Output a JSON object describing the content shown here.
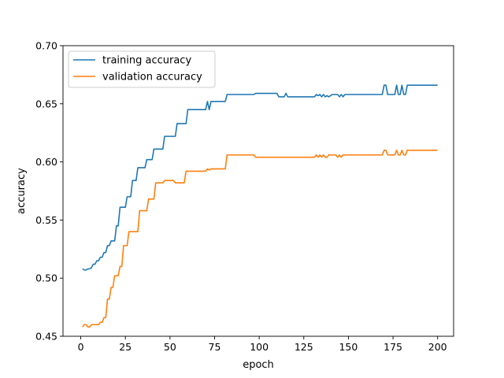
{
  "chart_data": {
    "type": "line",
    "xlabel": "epoch",
    "ylabel": "accuracy",
    "xlim": [
      -9.95,
      208.95
    ],
    "ylim": [
      0.45,
      0.7
    ],
    "xticks": [
      0,
      25,
      50,
      75,
      100,
      125,
      150,
      175,
      200
    ],
    "yticks": [
      0.45,
      0.5,
      0.55,
      0.6,
      0.65,
      0.7
    ],
    "xtick_labels": [
      "0",
      "25",
      "50",
      "75",
      "100",
      "125",
      "150",
      "175",
      "200"
    ],
    "ytick_labels": [
      "0.45",
      "0.50",
      "0.55",
      "0.60",
      "0.65",
      "0.70"
    ],
    "legend": {
      "placement": "upper-left"
    },
    "grid": false,
    "series": [
      {
        "name": "training accuracy",
        "color": "#1f77b4",
        "points": [
          [
            1,
            0.508
          ],
          [
            2,
            0.507
          ],
          [
            3,
            0.507
          ],
          [
            4,
            0.508
          ],
          [
            5,
            0.508
          ],
          [
            6,
            0.509
          ],
          [
            7,
            0.512
          ],
          [
            8,
            0.512
          ],
          [
            9,
            0.515
          ],
          [
            10,
            0.515
          ],
          [
            11,
            0.518
          ],
          [
            12,
            0.518
          ],
          [
            13,
            0.522
          ],
          [
            14,
            0.522
          ],
          [
            15,
            0.528
          ],
          [
            16,
            0.528
          ],
          [
            17,
            0.532
          ],
          [
            18,
            0.532
          ],
          [
            19,
            0.532
          ],
          [
            20,
            0.545
          ],
          [
            21,
            0.545
          ],
          [
            22,
            0.561
          ],
          [
            23,
            0.561
          ],
          [
            24,
            0.561
          ],
          [
            25,
            0.561
          ],
          [
            26,
            0.57
          ],
          [
            27,
            0.57
          ],
          [
            28,
            0.57
          ],
          [
            29,
            0.584
          ],
          [
            30,
            0.584
          ],
          [
            31,
            0.584
          ],
          [
            32,
            0.595
          ],
          [
            33,
            0.595
          ],
          [
            34,
            0.595
          ],
          [
            35,
            0.595
          ],
          [
            36,
            0.595
          ],
          [
            37,
            0.602
          ],
          [
            38,
            0.602
          ],
          [
            39,
            0.602
          ],
          [
            40,
            0.602
          ],
          [
            41,
            0.611
          ],
          [
            42,
            0.611
          ],
          [
            43,
            0.611
          ],
          [
            44,
            0.611
          ],
          [
            45,
            0.611
          ],
          [
            46,
            0.611
          ],
          [
            47,
            0.622
          ],
          [
            48,
            0.622
          ],
          [
            49,
            0.622
          ],
          [
            50,
            0.622
          ],
          [
            51,
            0.622
          ],
          [
            52,
            0.622
          ],
          [
            53,
            0.622
          ],
          [
            54,
            0.633
          ],
          [
            55,
            0.633
          ],
          [
            56,
            0.633
          ],
          [
            57,
            0.633
          ],
          [
            58,
            0.633
          ],
          [
            59,
            0.633
          ],
          [
            60,
            0.645
          ],
          [
            61,
            0.645
          ],
          [
            62,
            0.645
          ],
          [
            63,
            0.645
          ],
          [
            64,
            0.645
          ],
          [
            65,
            0.645
          ],
          [
            66,
            0.645
          ],
          [
            67,
            0.645
          ],
          [
            68,
            0.645
          ],
          [
            69,
            0.645
          ],
          [
            70,
            0.645
          ],
          [
            71,
            0.652
          ],
          [
            72,
            0.645
          ],
          [
            73,
            0.652
          ],
          [
            74,
            0.652
          ],
          [
            75,
            0.652
          ],
          [
            76,
            0.652
          ],
          [
            77,
            0.652
          ],
          [
            78,
            0.652
          ],
          [
            79,
            0.652
          ],
          [
            80,
            0.652
          ],
          [
            81,
            0.652
          ],
          [
            82,
            0.658
          ],
          [
            90,
            0.658
          ],
          [
            97,
            0.658
          ],
          [
            98,
            0.659
          ],
          [
            110,
            0.659
          ],
          [
            111,
            0.656
          ],
          [
            114,
            0.656
          ],
          [
            115,
            0.659
          ],
          [
            116,
            0.656
          ],
          [
            130,
            0.656
          ],
          [
            131,
            0.656
          ],
          [
            132,
            0.658
          ],
          [
            133,
            0.657
          ],
          [
            134,
            0.658
          ],
          [
            135,
            0.656
          ],
          [
            136,
            0.658
          ],
          [
            137,
            0.656
          ],
          [
            138,
            0.657
          ],
          [
            139,
            0.656
          ],
          [
            140,
            0.657
          ],
          [
            141,
            0.658
          ],
          [
            142,
            0.658
          ],
          [
            143,
            0.658
          ],
          [
            144,
            0.658
          ],
          [
            145,
            0.656
          ],
          [
            146,
            0.658
          ],
          [
            147,
            0.656
          ],
          [
            148,
            0.658
          ],
          [
            150,
            0.658
          ],
          [
            160,
            0.658
          ],
          [
            169,
            0.658
          ],
          [
            170,
            0.666
          ],
          [
            171,
            0.666
          ],
          [
            172,
            0.658
          ],
          [
            173,
            0.658
          ],
          [
            174,
            0.658
          ],
          [
            175,
            0.658
          ],
          [
            176,
            0.658
          ],
          [
            177,
            0.666
          ],
          [
            178,
            0.658
          ],
          [
            179,
            0.658
          ],
          [
            180,
            0.666
          ],
          [
            181,
            0.658
          ],
          [
            182,
            0.658
          ],
          [
            183,
            0.666
          ],
          [
            190,
            0.666
          ],
          [
            200,
            0.666
          ]
        ]
      },
      {
        "name": "validation accuracy",
        "color": "#ff7f0e",
        "points": [
          [
            1,
            0.458
          ],
          [
            2,
            0.46
          ],
          [
            3,
            0.46
          ],
          [
            4,
            0.458
          ],
          [
            5,
            0.458
          ],
          [
            6,
            0.46
          ],
          [
            7,
            0.46
          ],
          [
            8,
            0.46
          ],
          [
            9,
            0.46
          ],
          [
            10,
            0.46
          ],
          [
            11,
            0.462
          ],
          [
            12,
            0.462
          ],
          [
            13,
            0.466
          ],
          [
            14,
            0.466
          ],
          [
            15,
            0.482
          ],
          [
            16,
            0.482
          ],
          [
            17,
            0.492
          ],
          [
            18,
            0.492
          ],
          [
            19,
            0.502
          ],
          [
            20,
            0.502
          ],
          [
            21,
            0.502
          ],
          [
            22,
            0.51
          ],
          [
            23,
            0.51
          ],
          [
            24,
            0.528
          ],
          [
            25,
            0.528
          ],
          [
            26,
            0.528
          ],
          [
            27,
            0.54
          ],
          [
            28,
            0.54
          ],
          [
            29,
            0.54
          ],
          [
            30,
            0.54
          ],
          [
            31,
            0.54
          ],
          [
            32,
            0.54
          ],
          [
            33,
            0.558
          ],
          [
            34,
            0.558
          ],
          [
            35,
            0.558
          ],
          [
            36,
            0.558
          ],
          [
            37,
            0.558
          ],
          [
            38,
            0.568
          ],
          [
            39,
            0.568
          ],
          [
            40,
            0.568
          ],
          [
            41,
            0.568
          ],
          [
            42,
            0.582
          ],
          [
            43,
            0.582
          ],
          [
            44,
            0.582
          ],
          [
            45,
            0.582
          ],
          [
            46,
            0.582
          ],
          [
            47,
            0.584
          ],
          [
            48,
            0.584
          ],
          [
            49,
            0.584
          ],
          [
            50,
            0.584
          ],
          [
            51,
            0.584
          ],
          [
            52,
            0.584
          ],
          [
            53,
            0.582
          ],
          [
            54,
            0.582
          ],
          [
            55,
            0.582
          ],
          [
            56,
            0.582
          ],
          [
            57,
            0.582
          ],
          [
            58,
            0.582
          ],
          [
            59,
            0.592
          ],
          [
            60,
            0.592
          ],
          [
            65,
            0.592
          ],
          [
            70,
            0.592
          ],
          [
            71,
            0.594
          ],
          [
            72,
            0.593
          ],
          [
            73,
            0.594
          ],
          [
            74,
            0.594
          ],
          [
            75,
            0.594
          ],
          [
            76,
            0.594
          ],
          [
            77,
            0.594
          ],
          [
            78,
            0.594
          ],
          [
            79,
            0.594
          ],
          [
            80,
            0.594
          ],
          [
            81,
            0.594
          ],
          [
            82,
            0.606
          ],
          [
            90,
            0.606
          ],
          [
            97,
            0.606
          ],
          [
            98,
            0.604
          ],
          [
            110,
            0.604
          ],
          [
            120,
            0.604
          ],
          [
            130,
            0.604
          ],
          [
            131,
            0.604
          ],
          [
            132,
            0.606
          ],
          [
            133,
            0.604
          ],
          [
            134,
            0.606
          ],
          [
            135,
            0.604
          ],
          [
            136,
            0.606
          ],
          [
            137,
            0.604
          ],
          [
            138,
            0.604
          ],
          [
            139,
            0.606
          ],
          [
            140,
            0.606
          ],
          [
            141,
            0.606
          ],
          [
            142,
            0.606
          ],
          [
            143,
            0.606
          ],
          [
            144,
            0.604
          ],
          [
            145,
            0.606
          ],
          [
            146,
            0.604
          ],
          [
            147,
            0.606
          ],
          [
            148,
            0.606
          ],
          [
            150,
            0.606
          ],
          [
            160,
            0.606
          ],
          [
            169,
            0.606
          ],
          [
            170,
            0.61
          ],
          [
            171,
            0.61
          ],
          [
            172,
            0.606
          ],
          [
            173,
            0.606
          ],
          [
            174,
            0.606
          ],
          [
            175,
            0.606
          ],
          [
            176,
            0.606
          ],
          [
            177,
            0.61
          ],
          [
            178,
            0.606
          ],
          [
            179,
            0.606
          ],
          [
            180,
            0.61
          ],
          [
            181,
            0.606
          ],
          [
            182,
            0.606
          ],
          [
            183,
            0.61
          ],
          [
            190,
            0.61
          ],
          [
            200,
            0.61
          ]
        ]
      }
    ]
  }
}
